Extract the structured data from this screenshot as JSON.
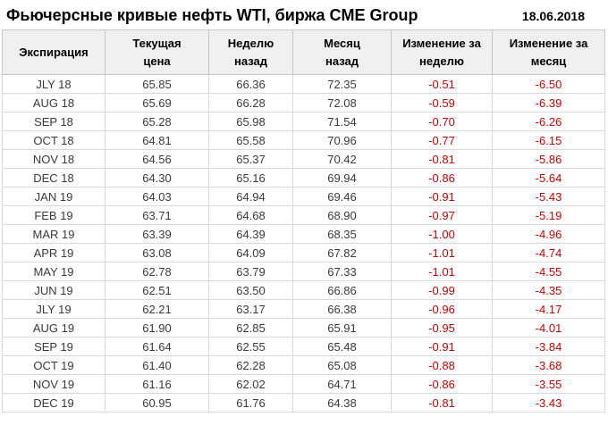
{
  "chart_data": {
    "type": "table",
    "title": "Фьючерсные кривые нефть WTI, биржа CME Group",
    "date": "18.06.2018",
    "columns": [
      "Экспирация",
      "Текущая\nцена",
      "Неделю\nназад",
      "Месяц\nназад",
      "Изменение за\nнеделю",
      "Изменение за\nмесяц"
    ],
    "rows": [
      [
        "JLY 18",
        "65.85",
        "66.36",
        "72.35",
        "-0.51",
        "-6.50"
      ],
      [
        "AUG 18",
        "65.69",
        "66.28",
        "72.08",
        "-0.59",
        "-6.39"
      ],
      [
        "SEP 18",
        "65.28",
        "65.98",
        "71.54",
        "-0.70",
        "-6.26"
      ],
      [
        "OCT 18",
        "64.81",
        "65.58",
        "70.96",
        "-0.77",
        "-6.15"
      ],
      [
        "NOV 18",
        "64.56",
        "65.37",
        "70.42",
        "-0.81",
        "-5.86"
      ],
      [
        "DEC 18",
        "64.30",
        "65.16",
        "69.94",
        "-0.86",
        "-5.64"
      ],
      [
        "JAN 19",
        "64.03",
        "64.94",
        "69.46",
        "-0.91",
        "-5.43"
      ],
      [
        "FEB 19",
        "63.71",
        "64.68",
        "68.90",
        "-0.97",
        "-5.19"
      ],
      [
        "MAR 19",
        "63.39",
        "64.39",
        "68.35",
        "-1.00",
        "-4.96"
      ],
      [
        "APR 19",
        "63.08",
        "64.09",
        "67.82",
        "-1.01",
        "-4.74"
      ],
      [
        "MAY 19",
        "62.78",
        "63.79",
        "67.33",
        "-1.01",
        "-4.55"
      ],
      [
        "JUN 19",
        "62.51",
        "63.50",
        "66.86",
        "-0.99",
        "-4.35"
      ],
      [
        "JLY 19",
        "62.21",
        "63.17",
        "66.38",
        "-0.96",
        "-4.17"
      ],
      [
        "AUG 19",
        "61.90",
        "62.85",
        "65.91",
        "-0.95",
        "-4.01"
      ],
      [
        "SEP 19",
        "61.64",
        "62.55",
        "65.48",
        "-0.91",
        "-3.84"
      ],
      [
        "OCT 19",
        "61.40",
        "62.28",
        "65.08",
        "-0.88",
        "-3.68"
      ],
      [
        "NOV 19",
        "61.16",
        "62.02",
        "64.71",
        "-0.86",
        "-3.55"
      ],
      [
        "DEC 19",
        "60.95",
        "61.76",
        "64.38",
        "-0.81",
        "-3.43"
      ]
    ]
  },
  "colors": {
    "negative_change": "#cc0000",
    "header_background": "#f0f0f0",
    "grid_border": "#c6c6c6"
  }
}
